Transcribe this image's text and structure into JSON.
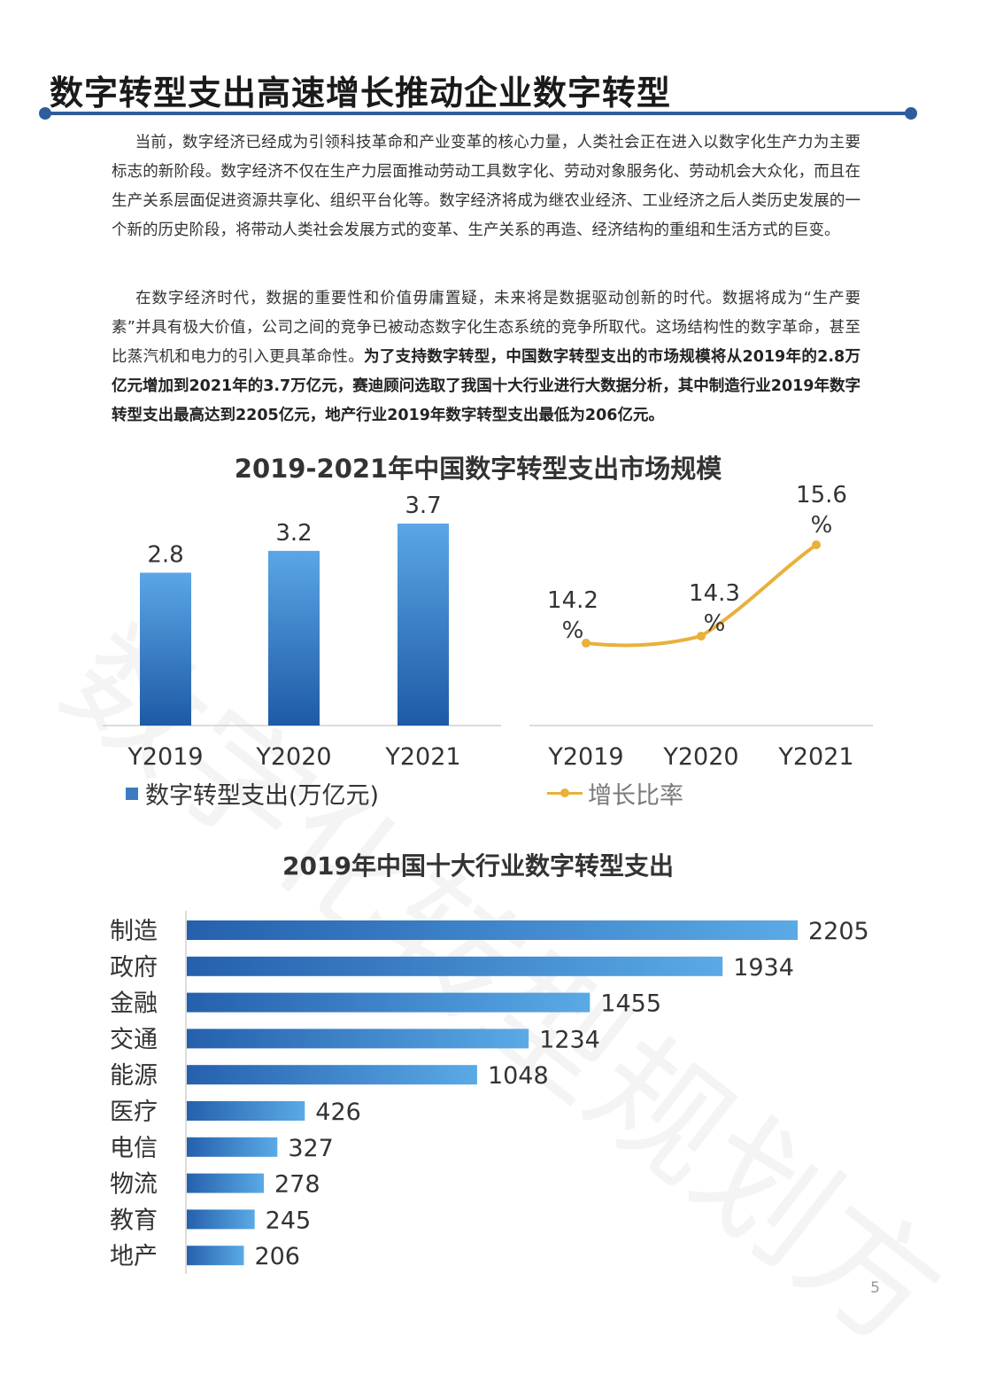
{
  "page": {
    "title": "数字转型支出高速增长推动企业数字转型",
    "page_number": "5",
    "watermark": "数字化转型规划方"
  },
  "paragraph1": "当前，数字经济已经成为引领科技革命和产业变革的核心力量，人类社会正在进入以数字化生产力为主要标志的新阶段。数字经济不仅在生产力层面推动劳动工具数字化、劳动对象服务化、劳动机会大众化，而且在生产关系层面促进资源共享化、组织平台化等。数字经济将成为继农业经济、工业经济之后人类历史发展的一个新的历史阶段，将带动人类社会发展方式的变革、生产关系的再造、经济结构的重组和生活方式的巨变。",
  "paragraph2": {
    "normal": "在数字经济时代，数据的重要性和价值毋庸置疑，未来将是数据驱动创新的时代。数据将成为“生产要素”并具有极大价值，公司之间的竞争已被动态数字化生态系统的竞争所取代。这场结构性的数字革命，甚至比蒸汽机和电力的引入更具革命性。",
    "bold": "为了支持数字转型，中国数字转型支出的市场规模将从2019年的2.8万亿元增加到2021年的3.7万亿元，赛迪顾问选取了我国十大行业进行大数据分析，其中制造行业2019年数字转型支出最高达到2205亿元，地产行业2019年数字转型支出最低为206亿元。"
  },
  "chart_data": [
    {
      "type": "bar",
      "title": "2019-2021年中国数字转型支出市场规模",
      "categories": [
        "Y2019",
        "Y2020",
        "Y2021"
      ],
      "series": [
        {
          "name": "数字转型支出(万亿元)",
          "values": [
            2.8,
            3.2,
            3.7
          ]
        }
      ],
      "data_labels": [
        "2.8",
        "3.2",
        "3.7"
      ],
      "legend": "bottom",
      "color": "#3c7bc2"
    },
    {
      "type": "line",
      "title": "2019-2021年中国数字转型支出市场规模",
      "categories": [
        "Y2019",
        "Y2020",
        "Y2021"
      ],
      "series": [
        {
          "name": "增长比率",
          "values": [
            14.2,
            14.3,
            15.6
          ]
        }
      ],
      "data_labels": [
        [
          "14.2",
          "%"
        ],
        [
          "14.3",
          "%"
        ],
        [
          "15.6",
          "%"
        ]
      ],
      "legend": "bottom",
      "color": "#e8b13a"
    },
    {
      "type": "bar",
      "orientation": "horizontal",
      "title": "2019年中国十大行业数字转型支出",
      "categories": [
        "制造",
        "政府",
        "金融",
        "交通",
        "能源",
        "医疗",
        "电信",
        "物流",
        "教育",
        "地产"
      ],
      "values": [
        2205,
        1934,
        1455,
        1234,
        1048,
        426,
        327,
        278,
        245,
        206
      ],
      "data_labels": [
        "2205",
        "1934",
        "1455",
        "1234",
        "1048",
        "426",
        "327",
        "278",
        "245",
        "206"
      ],
      "color": "#2f6bb8"
    }
  ]
}
